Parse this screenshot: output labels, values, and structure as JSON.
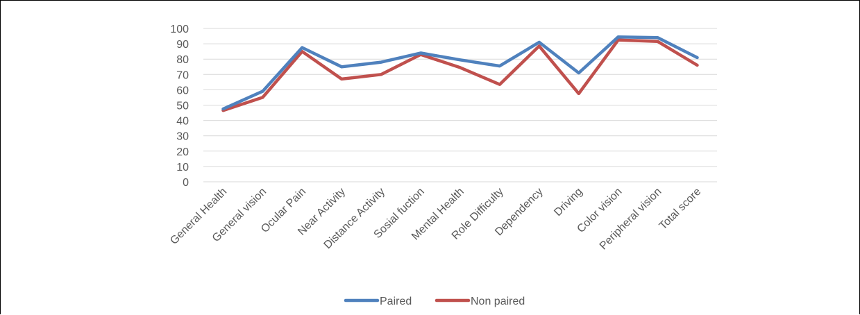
{
  "chart_data": {
    "type": "line",
    "categories": [
      "General Health",
      "General vision",
      "Ocular Pain",
      "Near Activity",
      "Distance Activity",
      "Sosial fuction",
      "Mental Health",
      "Role Difficulty",
      "Dependency",
      "Driving",
      "Color vision",
      "Peripheral vision",
      "Total score"
    ],
    "series": [
      {
        "name": "Paired",
        "color": "#4F81BD",
        "values": [
          47.5,
          59,
          87.5,
          75,
          78,
          84,
          79.5,
          75.5,
          91,
          71,
          94.5,
          94,
          81
        ]
      },
      {
        "name": "Non paired",
        "color": "#C0504D",
        "values": [
          46.5,
          55,
          85,
          67,
          70,
          83,
          74.5,
          63.5,
          88.5,
          57.5,
          92.5,
          91.5,
          76
        ]
      }
    ],
    "ylim": [
      0,
      100
    ],
    "yticks": [
      0,
      10,
      20,
      30,
      40,
      50,
      60,
      70,
      80,
      90,
      100
    ],
    "grid": true,
    "legend": "bottom"
  }
}
